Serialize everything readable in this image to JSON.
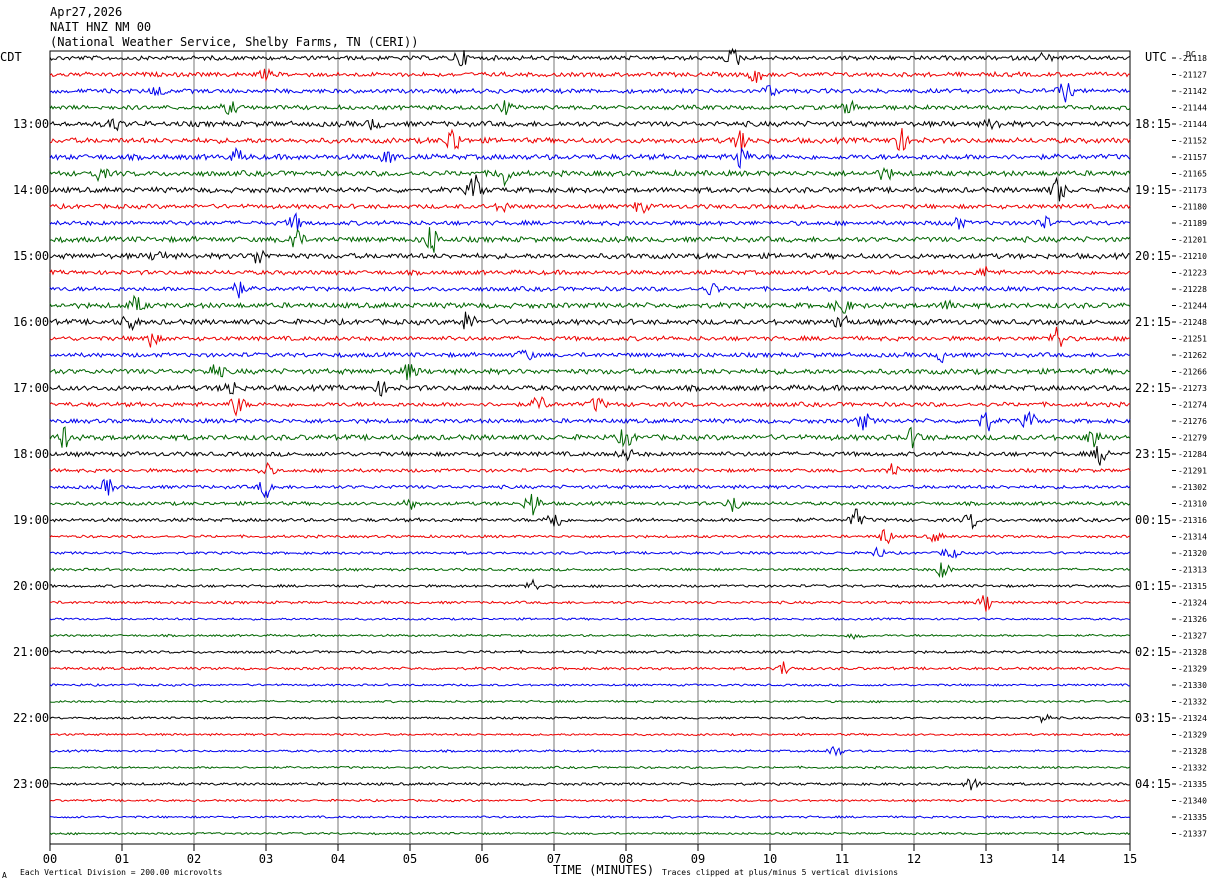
{
  "header": {
    "date": "Apr27,2026",
    "station": "NAIT HNZ NM 00",
    "network": "(National Weather Service, Shelby Farms, TN (CERI))"
  },
  "left_zone": "CDT",
  "right_zone": "UTC",
  "dc_header": "DC",
  "footer": {
    "scale": "Each Vertical Division =  200.00 microvolts",
    "clip": "Traces clipped at plus/minus 5 vertical divisions",
    "corner_mark": "A"
  },
  "chart_data": {
    "type": "line",
    "title": "",
    "xlabel": "TIME (MINUTES)",
    "ylabel": "",
    "xlim": [
      0,
      15
    ],
    "x_ticks": [
      "00",
      "01",
      "02",
      "03",
      "04",
      "05",
      "06",
      "07",
      "08",
      "09",
      "10",
      "11",
      "12",
      "13",
      "14",
      "15"
    ],
    "traces_per_hour": 4,
    "trace_colors": [
      "#000000",
      "#ee0000",
      "#0000ee",
      "#006600"
    ],
    "left_hour_labels": [
      "13:00",
      "14:00",
      "15:00",
      "16:00",
      "17:00",
      "18:00",
      "19:00",
      "20:00",
      "21:00",
      "22:00",
      "23:00"
    ],
    "right_hour_labels": [
      "18:15",
      "19:15",
      "20:15",
      "21:15",
      "22:15",
      "23:15",
      "00:15",
      "01:15",
      "02:15",
      "03:15",
      "04:15"
    ],
    "dc_offsets": [
      "-21118",
      "-21127",
      "-21142",
      "-21144",
      "-21144",
      "-21152",
      "-21157",
      "-21165",
      "-21173",
      "-21180",
      "-21189",
      "-21201",
      "-21210",
      "-21223",
      "-21228",
      "-21244",
      "-21248",
      "-21251",
      "-21262",
      "-21266",
      "-21273",
      "-21274",
      "-21276",
      "-21279",
      "-21284",
      "-21291",
      "-21302",
      "-21310",
      "-21316",
      "-21314",
      "-21320",
      "-21313",
      "-21315",
      "-21324",
      "-21326",
      "-21327",
      "-21328",
      "-21329",
      "-21330",
      "-21332",
      "-21324",
      "-21329",
      "-21328",
      "-21332",
      "-21335",
      "-21340",
      "-21335",
      "-21337"
    ],
    "trace_noise_amplitude": [
      2.5,
      2.5,
      2.5,
      2.5,
      3,
      3,
      3,
      3,
      3,
      2.5,
      2.5,
      3,
      3,
      2.5,
      2.5,
      3,
      3,
      2.5,
      2.5,
      3,
      3,
      2.5,
      2.5,
      3,
      2.5,
      2,
      2,
      2,
      2,
      1.5,
      1.5,
      1.5,
      1.5,
      1.5,
      1.2,
      1.2,
      1.5,
      1.5,
      1.2,
      1.2,
      1.2,
      1.2,
      1.2,
      1.2,
      1.5,
      1.2,
      1.2,
      1.2
    ],
    "events": [
      {
        "trace": 0,
        "minute": 5.7,
        "amp": 8
      },
      {
        "trace": 0,
        "minute": 9.5,
        "amp": 9
      },
      {
        "trace": 0,
        "minute": 13.8,
        "amp": 5
      },
      {
        "trace": 1,
        "minute": 9.8,
        "amp": 7
      },
      {
        "trace": 1,
        "minute": 3.0,
        "amp": 4
      },
      {
        "trace": 2,
        "minute": 14.1,
        "amp": 10
      },
      {
        "trace": 2,
        "minute": 10.0,
        "amp": 5
      },
      {
        "trace": 2,
        "minute": 1.5,
        "amp": 5
      },
      {
        "trace": 3,
        "minute": 2.5,
        "amp": 6
      },
      {
        "trace": 3,
        "minute": 6.3,
        "amp": 7
      },
      {
        "trace": 3,
        "minute": 11.1,
        "amp": 6
      },
      {
        "trace": 4,
        "minute": 0.9,
        "amp": 6
      },
      {
        "trace": 4,
        "minute": 4.5,
        "amp": 5
      },
      {
        "trace": 4,
        "minute": 13.1,
        "amp": 5
      },
      {
        "trace": 5,
        "minute": 5.6,
        "amp": 14
      },
      {
        "trace": 5,
        "minute": 9.6,
        "amp": 10
      },
      {
        "trace": 5,
        "minute": 11.8,
        "amp": 12
      },
      {
        "trace": 6,
        "minute": 9.6,
        "amp": 12
      },
      {
        "trace": 6,
        "minute": 4.7,
        "amp": 6
      },
      {
        "trace": 6,
        "minute": 2.6,
        "amp": 6
      },
      {
        "trace": 7,
        "minute": 6.3,
        "amp": 12
      },
      {
        "trace": 7,
        "minute": 0.7,
        "amp": 6
      },
      {
        "trace": 7,
        "minute": 11.6,
        "amp": 6
      },
      {
        "trace": 8,
        "minute": 5.9,
        "amp": 14
      },
      {
        "trace": 8,
        "minute": 14.0,
        "amp": 12
      },
      {
        "trace": 9,
        "minute": 8.2,
        "amp": 6
      },
      {
        "trace": 9,
        "minute": 6.3,
        "amp": 5
      },
      {
        "trace": 10,
        "minute": 3.4,
        "amp": 8
      },
      {
        "trace": 10,
        "minute": 12.6,
        "amp": 6
      },
      {
        "trace": 10,
        "minute": 13.8,
        "amp": 6
      },
      {
        "trace": 11,
        "minute": 3.4,
        "amp": 12
      },
      {
        "trace": 11,
        "minute": 5.3,
        "amp": 14
      },
      {
        "trace": 12,
        "minute": 1.5,
        "amp": 6
      },
      {
        "trace": 12,
        "minute": 2.9,
        "amp": 8
      },
      {
        "trace": 13,
        "minute": 13.0,
        "amp": 5
      },
      {
        "trace": 14,
        "minute": 2.6,
        "amp": 8
      },
      {
        "trace": 14,
        "minute": 9.2,
        "amp": 6
      },
      {
        "trace": 15,
        "minute": 1.2,
        "amp": 8
      },
      {
        "trace": 15,
        "minute": 11.0,
        "amp": 10
      },
      {
        "trace": 15,
        "minute": 12.5,
        "amp": 5
      },
      {
        "trace": 16,
        "minute": 1.1,
        "amp": 8
      },
      {
        "trace": 16,
        "minute": 5.8,
        "amp": 10
      },
      {
        "trace": 16,
        "minute": 11.0,
        "amp": 8
      },
      {
        "trace": 17,
        "minute": 1.4,
        "amp": 8
      },
      {
        "trace": 17,
        "minute": 14.0,
        "amp": 12
      },
      {
        "trace": 18,
        "minute": 6.6,
        "amp": 6
      },
      {
        "trace": 18,
        "minute": 12.4,
        "amp": 6
      },
      {
        "trace": 19,
        "minute": 2.3,
        "amp": 8
      },
      {
        "trace": 19,
        "minute": 5.0,
        "amp": 8
      },
      {
        "trace": 20,
        "minute": 2.5,
        "amp": 8
      },
      {
        "trace": 20,
        "minute": 4.6,
        "amp": 6
      },
      {
        "trace": 21,
        "minute": 2.6,
        "amp": 10
      },
      {
        "trace": 21,
        "minute": 6.8,
        "amp": 8
      },
      {
        "trace": 21,
        "minute": 7.6,
        "amp": 7
      },
      {
        "trace": 22,
        "minute": 11.3,
        "amp": 8
      },
      {
        "trace": 22,
        "minute": 13.0,
        "amp": 10
      },
      {
        "trace": 22,
        "minute": 13.6,
        "amp": 8
      },
      {
        "trace": 23,
        "minute": 0.2,
        "amp": 10
      },
      {
        "trace": 23,
        "minute": 8.0,
        "amp": 9
      },
      {
        "trace": 23,
        "minute": 12.0,
        "amp": 10
      },
      {
        "trace": 23,
        "minute": 14.5,
        "amp": 9
      },
      {
        "trace": 24,
        "minute": 14.6,
        "amp": 10
      },
      {
        "trace": 24,
        "minute": 8.0,
        "amp": 6
      },
      {
        "trace": 25,
        "minute": 3.0,
        "amp": 7
      },
      {
        "trace": 25,
        "minute": 11.7,
        "amp": 7
      },
      {
        "trace": 26,
        "minute": 0.8,
        "amp": 8
      },
      {
        "trace": 26,
        "minute": 3.0,
        "amp": 10
      },
      {
        "trace": 27,
        "minute": 6.7,
        "amp": 14
      },
      {
        "trace": 27,
        "minute": 9.5,
        "amp": 8
      },
      {
        "trace": 27,
        "minute": 5.0,
        "amp": 6
      },
      {
        "trace": 28,
        "minute": 7.0,
        "amp": 12
      },
      {
        "trace": 28,
        "minute": 11.2,
        "amp": 10
      },
      {
        "trace": 28,
        "minute": 12.8,
        "amp": 8
      },
      {
        "trace": 29,
        "minute": 11.6,
        "amp": 8
      },
      {
        "trace": 29,
        "minute": 12.3,
        "amp": 5
      },
      {
        "trace": 30,
        "minute": 11.5,
        "amp": 5
      },
      {
        "trace": 30,
        "minute": 12.5,
        "amp": 7
      },
      {
        "trace": 31,
        "minute": 12.4,
        "amp": 8
      },
      {
        "trace": 32,
        "minute": 6.7,
        "amp": 6
      },
      {
        "trace": 33,
        "minute": 13.0,
        "amp": 9
      },
      {
        "trace": 35,
        "minute": 11.2,
        "amp": 5
      },
      {
        "trace": 37,
        "minute": 10.2,
        "amp": 7
      },
      {
        "trace": 40,
        "minute": 13.8,
        "amp": 5
      },
      {
        "trace": 42,
        "minute": 10.9,
        "amp": 6
      },
      {
        "trace": 44,
        "minute": 12.8,
        "amp": 6
      }
    ]
  }
}
